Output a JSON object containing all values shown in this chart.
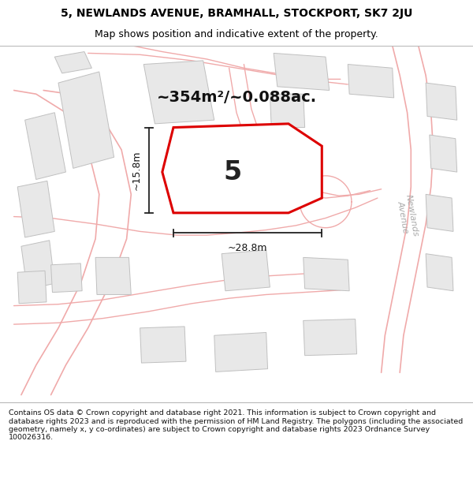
{
  "title_line1": "5, NEWLANDS AVENUE, BRAMHALL, STOCKPORT, SK7 2JU",
  "title_line2": "Map shows position and indicative extent of the property.",
  "footer_text": "Contains OS data © Crown copyright and database right 2021. This information is subject to Crown copyright and database rights 2023 and is reproduced with the permission of HM Land Registry. The polygons (including the associated geometry, namely x, y co-ordinates) are subject to Crown copyright and database rights 2023 Ordnance Survey 100026316.",
  "area_label": "~354m²/~0.088ac.",
  "plot_number": "5",
  "dim_width": "~28.8m",
  "dim_height": "~15.8m",
  "map_bg": "#ffffff",
  "plot_fill": "#ffffff",
  "plot_edge_color": "#dd0000",
  "road_line_color": "#f0aaaa",
  "building_fill": "#e8e8e8",
  "building_edge": "#c0c0c0",
  "title_bg": "#ffffff",
  "footer_bg": "#ffffff",
  "dim_line_color": "#222222",
  "road_label_color": "#aaaaaa",
  "title_fontsize": 10,
  "subtitle_fontsize": 9,
  "area_fontsize": 14,
  "plot_num_fontsize": 24,
  "dim_fontsize": 9,
  "footer_fontsize": 6.8
}
